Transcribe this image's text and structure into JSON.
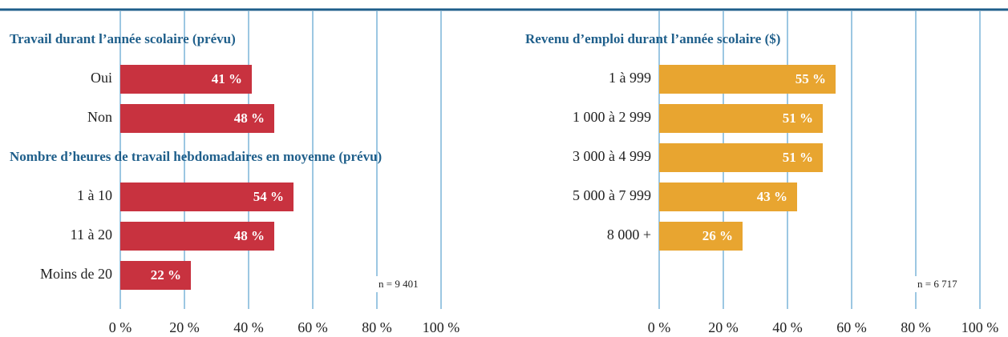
{
  "chart_data": [
    {
      "type": "bar",
      "orientation": "horizontal",
      "color": "#c8323f",
      "sections": [
        {
          "title": "Travail durant l’année scolaire (prévu)",
          "categories": [
            "Oui",
            "Non"
          ],
          "values": [
            41,
            48
          ],
          "value_labels": [
            "41 %",
            "48 %"
          ]
        },
        {
          "title": "Nombre d’heures de travail hebdomadaires en moyenne (prévu)",
          "categories": [
            "1 à 10",
            "11 à 20",
            "Moins de 20"
          ],
          "values": [
            54,
            48,
            22
          ],
          "value_labels": [
            "54 %",
            "48 %",
            "22 %"
          ]
        }
      ],
      "note": "n = 9 401",
      "xlim": [
        0,
        100
      ],
      "grid": true,
      "xticks": [
        {
          "value": 0,
          "label": "0 %"
        },
        {
          "value": 20,
          "label": "20 %"
        },
        {
          "value": 40,
          "label": "40 %"
        },
        {
          "value": 60,
          "label": "60 %"
        },
        {
          "value": 80,
          "label": "80 %"
        },
        {
          "value": 100,
          "label": "100 %"
        }
      ]
    },
    {
      "type": "bar",
      "orientation": "horizontal",
      "color": "#e8a530",
      "sections": [
        {
          "title": "Revenu d’emploi durant l’année scolaire ($)",
          "categories": [
            "1 à 999",
            "1 000 à 2 999",
            "3 000 à 4 999",
            "5 000 à 7 999",
            "8 000 +"
          ],
          "values": [
            55,
            51,
            51,
            43,
            26
          ],
          "value_labels": [
            "55 %",
            "51 %",
            "51 %",
            "43 %",
            "26 %"
          ]
        }
      ],
      "note": "n = 6 717",
      "xlim": [
        0,
        100
      ],
      "grid": true,
      "xticks": [
        {
          "value": 0,
          "label": "0 %"
        },
        {
          "value": 20,
          "label": "20 %"
        },
        {
          "value": 40,
          "label": "40 %"
        },
        {
          "value": 60,
          "label": "60 %"
        },
        {
          "value": 80,
          "label": "80 %"
        },
        {
          "value": 100,
          "label": "100 %"
        }
      ]
    }
  ]
}
